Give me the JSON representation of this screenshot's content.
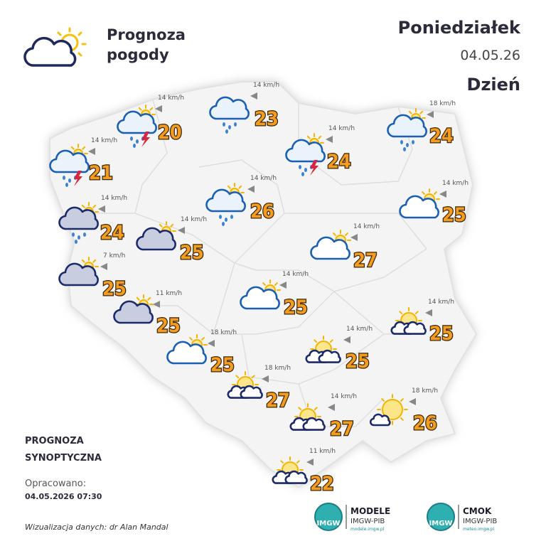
{
  "header": {
    "title_lines": [
      "Prognoza",
      "pogody"
    ],
    "day": "Poniedziałek",
    "date": "04.05.26",
    "period": "Dzień"
  },
  "stations": [
    {
      "wind": "14 km/h",
      "temperature": 20
    },
    {
      "wind": "14 km/h",
      "temperature": 23
    },
    {
      "wind": "18 km/h",
      "temperature": 24
    },
    {
      "wind": "14 km/h",
      "temperature": 21
    },
    {
      "wind": "14 km/h",
      "temperature": 24
    },
    {
      "wind": "14 km/h",
      "temperature": 26
    },
    {
      "wind": "14 km/h",
      "temperature": 25
    },
    {
      "wind": "14 km/h",
      "temperature": 24
    },
    {
      "wind": "14 km/h",
      "temperature": 25
    },
    {
      "wind": "14 km/h",
      "temperature": 27
    },
    {
      "wind": "7 km/h",
      "temperature": 25
    },
    {
      "wind": "14 km/h",
      "temperature": 25
    },
    {
      "wind": "11 km/h",
      "temperature": 25
    },
    {
      "wind": "14 km/h",
      "temperature": 25
    },
    {
      "wind": "18 km/h",
      "temperature": 25
    },
    {
      "wind": "14 km/h",
      "temperature": 25
    },
    {
      "wind": "18 km/h",
      "temperature": 27
    },
    {
      "wind": "14 km/h",
      "temperature": 27
    },
    {
      "wind": "18 km/h",
      "temperature": 26
    },
    {
      "wind": "11 km/h",
      "temperature": 22
    }
  ],
  "footer": {
    "heading_lines": [
      "PROGNOZA",
      "SYNOPTYCZNA"
    ],
    "prepared_label": "Opracowano:",
    "prepared_at": "04.05.2026 07:30",
    "credit": "Wizualizacja danych: dr Alan Mandal"
  },
  "logos": [
    {
      "badge": "IMGW",
      "name": "MODELE",
      "org": "IMGW-PIB",
      "url": "modele.imgw.pl"
    },
    {
      "badge": "IMGW",
      "name": "CMOK",
      "org": "IMGW-PIB",
      "url": "meteo.imgw.pl"
    }
  ]
}
